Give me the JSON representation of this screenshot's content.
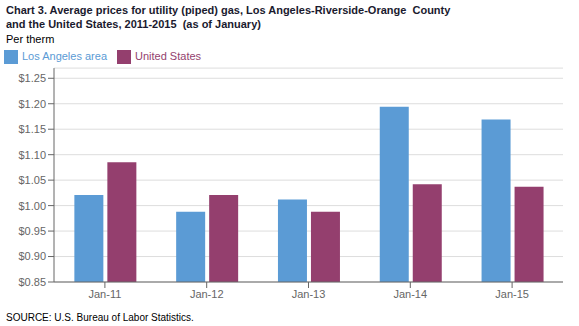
{
  "chart_data": {
    "type": "bar",
    "title": "Chart 3. Average prices for utility (piped) gas, Los Angeles-Riverside-Orange  County",
    "subtitle": "and the United States, 2011-2015  (as of January)",
    "ylabel": "Per therm",
    "source": "SOURCE: U.S. Bureau of Labor Statistics.",
    "categories": [
      "Jan-11",
      "Jan-12",
      "Jan-13",
      "Jan-14",
      "Jan-15"
    ],
    "series": [
      {
        "name": "Los Angeles area",
        "color": "#5B9BD5",
        "values": [
          1.021,
          0.988,
          1.012,
          1.194,
          1.169
        ]
      },
      {
        "name": "United States",
        "color": "#943F6E",
        "values": [
          1.085,
          1.021,
          0.988,
          1.042,
          1.037
        ]
      }
    ],
    "ylim": [
      0.85,
      1.27
    ],
    "yticks": [
      {
        "value": 0.85,
        "label": "$0.85"
      },
      {
        "value": 0.9,
        "label": "$0.90"
      },
      {
        "value": 0.95,
        "label": "$0.95"
      },
      {
        "value": 1.0,
        "label": "$1.00"
      },
      {
        "value": 1.05,
        "label": "$1.05"
      },
      {
        "value": 1.1,
        "label": "$1.10"
      },
      {
        "value": 1.15,
        "label": "$1.15"
      },
      {
        "value": 1.2,
        "label": "$1.20"
      },
      {
        "value": 1.25,
        "label": "$1.25"
      }
    ],
    "grid": true,
    "legend": "upper left"
  }
}
